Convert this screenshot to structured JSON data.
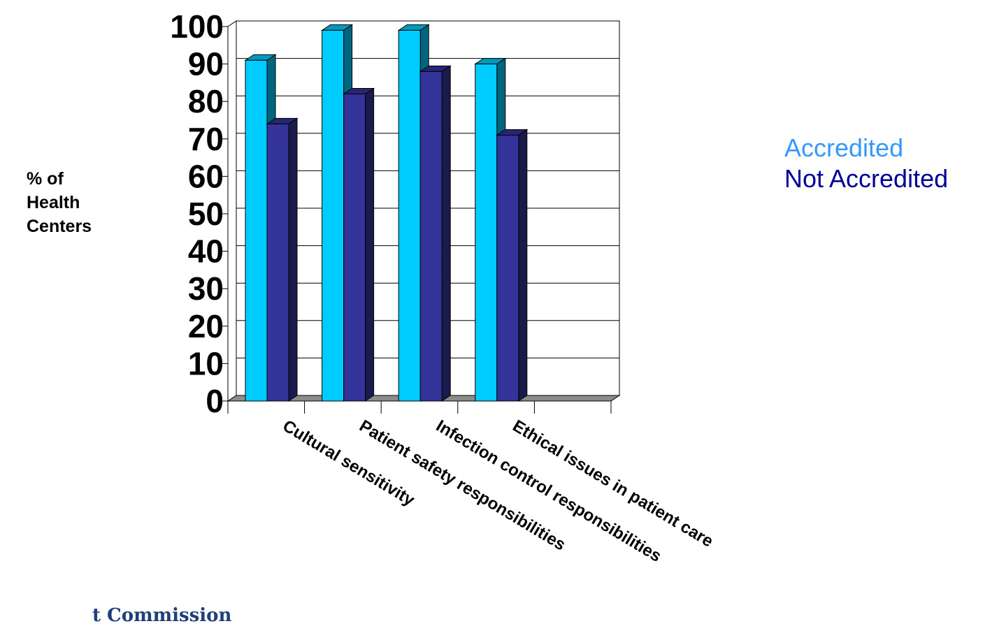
{
  "chart_data": {
    "type": "bar",
    "categories": [
      "Cultural sensitivity",
      "Patient safety responsibilities",
      "Infection control responsibilities",
      "Ethical issues in patient care"
    ],
    "series": [
      {
        "name": "Accredited",
        "values": [
          91,
          99,
          99,
          90
        ],
        "color": "#00ccff"
      },
      {
        "name": "Not Accredited",
        "values": [
          74,
          82,
          88,
          71
        ],
        "color": "#333399"
      }
    ],
    "ylabel_lines": [
      "% of",
      "Health",
      "Centers"
    ],
    "yticks": [
      "0",
      "10",
      "20",
      "30",
      "40",
      "50",
      "60",
      "70",
      "80",
      "90",
      "100"
    ],
    "ylim": [
      0,
      100
    ],
    "grid": true,
    "legend_position": "right",
    "legend_colors": [
      "#3399ff",
      "#000099"
    ]
  },
  "footer_text": "t Commission"
}
